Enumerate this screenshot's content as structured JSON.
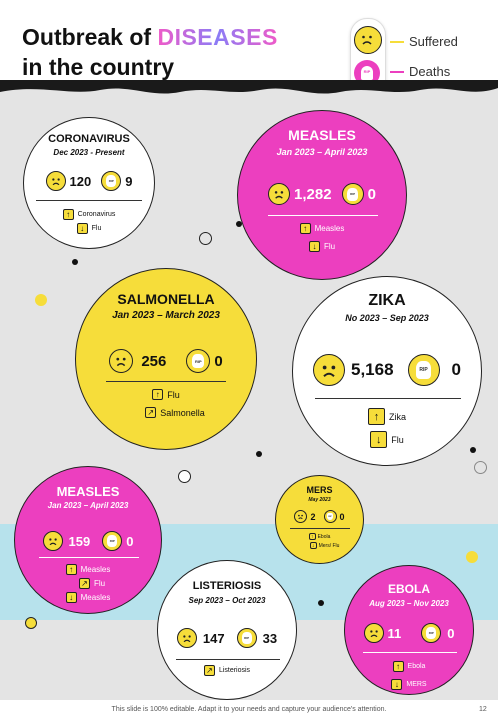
{
  "title": {
    "line1_prefix": "Outbreak of ",
    "line1_accent": "DISEASES",
    "line2": "in the country"
  },
  "legend": {
    "suffered": "Suffered",
    "deaths": "Deaths",
    "rip": "RIP"
  },
  "colors": {
    "pink": "#ec3fbf",
    "yellow": "#f6dd3a",
    "cyan": "#b7e2ec",
    "gray": "#e4e4e4"
  },
  "cards": {
    "coronavirus": {
      "name": "CORONAVIRUS",
      "period": "Dec 2023  - Present",
      "suffered": "120",
      "deaths": "9",
      "trend_up": "Coronavirus",
      "trend_down": "Flu",
      "rip": "RIP"
    },
    "measles1": {
      "name": "MEASLES",
      "period": "Jan 2023 – April 2023",
      "suffered": "1,282",
      "deaths": "0",
      "trend_up": "Measles",
      "trend_down": "Flu",
      "rip": "RIP"
    },
    "salmonella": {
      "name": "SALMONELLA",
      "period": "Jan 2023 – March 2023",
      "suffered": "256",
      "deaths": "0",
      "trend_up": "Flu",
      "trend_side": "Salmonella",
      "rip": "RIP"
    },
    "zika": {
      "name": "ZIKA",
      "period": "No 2023 – Sep 2023",
      "suffered": "5,168",
      "deaths": "0",
      "trend_up": "Zika",
      "trend_down": "Flu",
      "rip": "RIP"
    },
    "measles2": {
      "name": "MEASLES",
      "period": "Jan 2023 – April 2023",
      "suffered": "159",
      "deaths": "0",
      "trend_up": "Measles",
      "trend_side": "Flu",
      "trend_down": "Measles",
      "rip": "RIP"
    },
    "mers": {
      "name": "MERS",
      "period": "May 2023",
      "suffered": "2",
      "deaths": "0",
      "trend_up": "Ebola",
      "trend_down": "Mers/ Flu",
      "rip": "RIP"
    },
    "listeriosis": {
      "name": "LISTERIOSIS",
      "period": "Sep 2023 – Oct 2023",
      "suffered": "147",
      "deaths": "33",
      "trend_side": "Listeriosis",
      "rip": "RIP"
    },
    "ebola": {
      "name": "EBOLA",
      "period": "Aug 2023 – Nov 2023",
      "suffered": "11",
      "deaths": "0",
      "trend_up": "Ebola",
      "trend_down": "MERS",
      "rip": "RIP"
    }
  },
  "footer": {
    "note": "This slide is 100% editable. Adapt it to your needs and capture your audience's attention.",
    "page": "12"
  }
}
